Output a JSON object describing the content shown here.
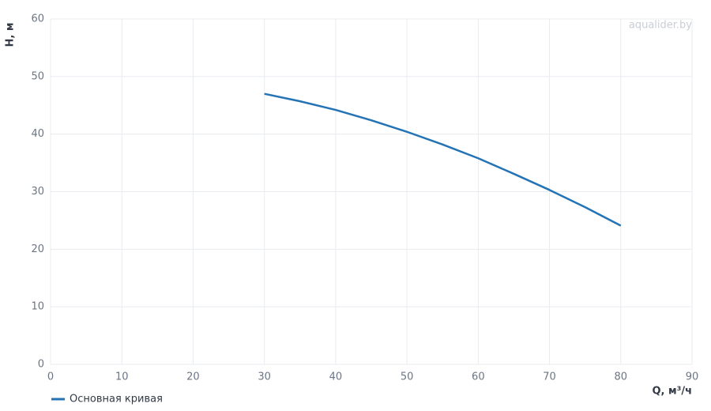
{
  "chart_data": {
    "type": "line",
    "xlabel": "Q, м³/ч",
    "ylabel": "H, м",
    "watermark": "aqualider.by",
    "x": [
      30,
      35,
      40,
      45,
      50,
      55,
      60,
      65,
      70,
      75,
      80
    ],
    "series": [
      {
        "name": "Основная кривая",
        "color": "#2473b5",
        "values": [
          47,
          45.7,
          44.2,
          42.4,
          40.4,
          38.2,
          35.8,
          33.1,
          30.3,
          27.3,
          24.1
        ]
      }
    ],
    "xlim": [
      0,
      90
    ],
    "xticks": [
      0,
      10,
      20,
      30,
      40,
      50,
      60,
      70,
      80,
      90
    ],
    "ylim": [
      0,
      60
    ],
    "yticks": [
      0,
      10,
      20,
      30,
      40,
      50,
      60
    ],
    "grid": true
  }
}
